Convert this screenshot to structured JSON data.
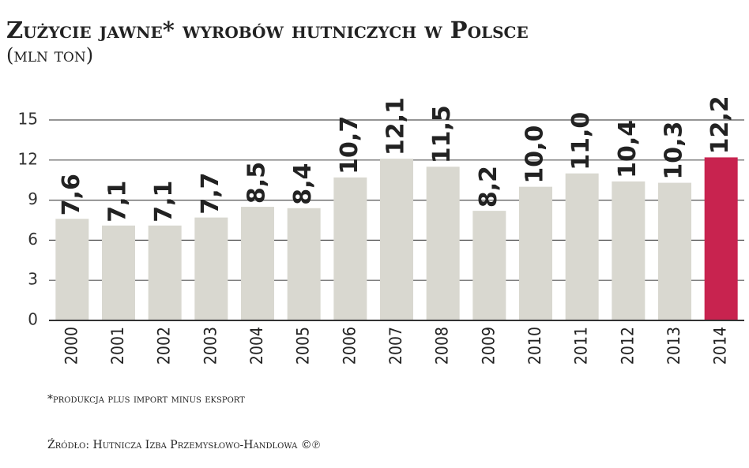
{
  "chart_data": {
    "type": "bar",
    "title": "Zużycie jawne* wyrobów hutniczych w Polsce",
    "subtitle": "(mln ton)",
    "footnote": "*produkcja plus import minus eksport",
    "source": "Źródło: Hutnicza Izba Przemysłowo-Handlowa ©℗",
    "categories": [
      "2000",
      "2001",
      "2002",
      "2003",
      "2004",
      "2005",
      "2006",
      "2007",
      "2008",
      "2009",
      "2010",
      "2011",
      "2012",
      "2013",
      "2014"
    ],
    "values": [
      7.6,
      7.1,
      7.1,
      7.7,
      8.5,
      8.4,
      10.7,
      12.1,
      11.5,
      8.2,
      10.0,
      11.0,
      10.4,
      10.3,
      12.2
    ],
    "value_labels": [
      "7,6",
      "7,1",
      "7,1",
      "7,7",
      "8,5",
      "8,4",
      "10,7",
      "12,1",
      "11,5",
      "8,2",
      "10,0",
      "11,0",
      "10,4",
      "10,3",
      "12,2"
    ],
    "colors": [
      "#d9d8d0",
      "#d9d8d0",
      "#d9d8d0",
      "#d9d8d0",
      "#d9d8d0",
      "#d9d8d0",
      "#d9d8d0",
      "#d9d8d0",
      "#d9d8d0",
      "#d9d8d0",
      "#d9d8d0",
      "#d9d8d0",
      "#d9d8d0",
      "#d9d8d0",
      "#c8234f"
    ],
    "ylim": [
      0,
      15
    ],
    "yticks": [
      0,
      3,
      6,
      9,
      12,
      15
    ],
    "grid": true
  }
}
